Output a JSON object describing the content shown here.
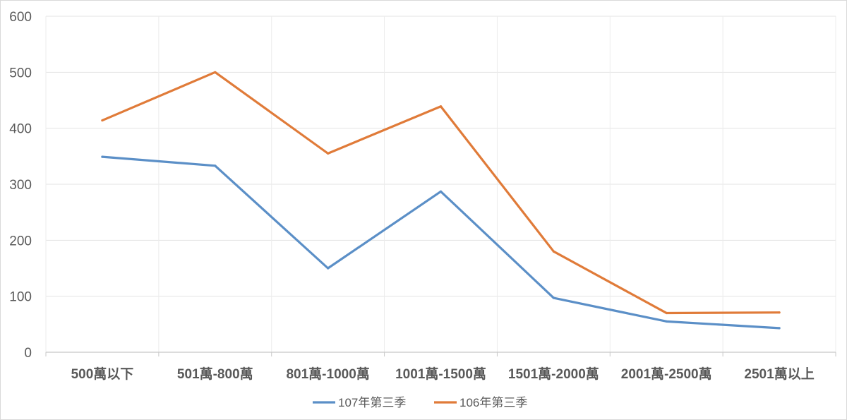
{
  "chart_data": {
    "type": "line",
    "title": "",
    "xlabel": "",
    "ylabel": "",
    "categories": [
      "500萬以下",
      "501萬-800萬",
      "801萬-1000萬",
      "1001萬-1500萬",
      "1501萬-2000萬",
      "2001萬-2500萬",
      "2501萬以上"
    ],
    "ylim": [
      0,
      600
    ],
    "yticks": [
      0,
      100,
      200,
      300,
      400,
      500,
      600
    ],
    "grid": true,
    "legend_position": "bottom",
    "series": [
      {
        "name": "107年第三季",
        "color": "#5b8fc7",
        "values": [
          349,
          333,
          150,
          287,
          97,
          55,
          43
        ]
      },
      {
        "name": "106年第三季",
        "color": "#e07b39",
        "values": [
          414,
          500,
          355,
          439,
          180,
          70,
          71
        ]
      }
    ]
  }
}
